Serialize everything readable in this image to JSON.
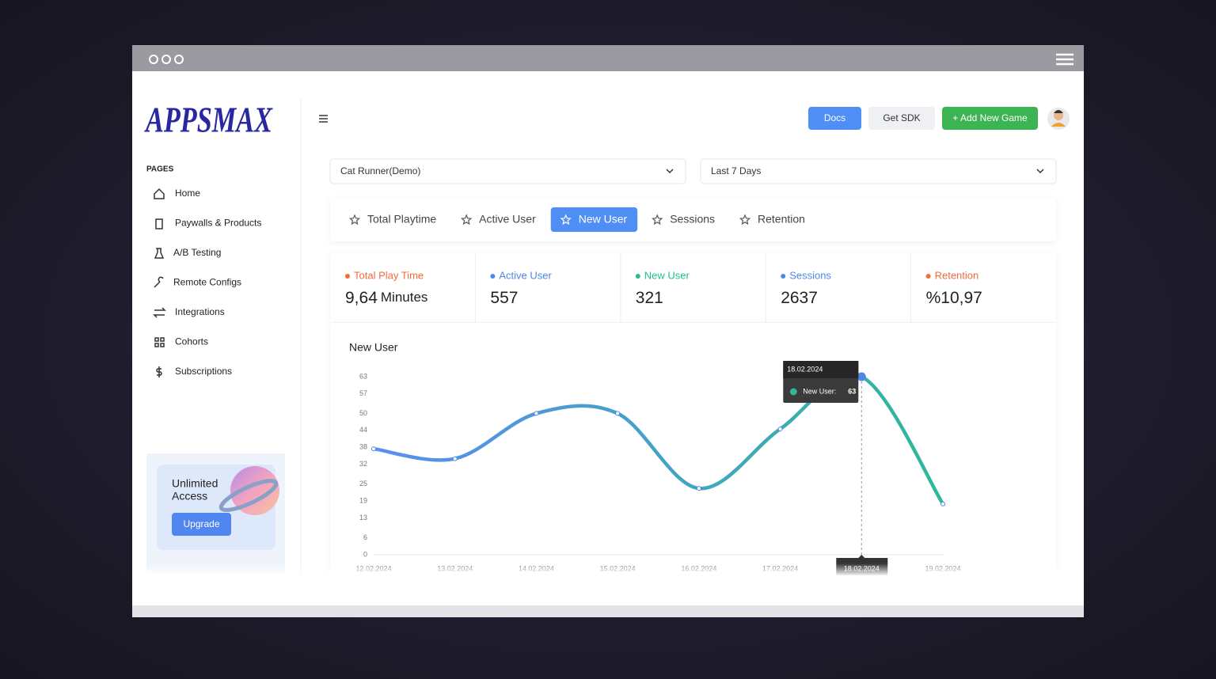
{
  "logo": "APPSMAX",
  "sidebar": {
    "section": "PAGES",
    "items": [
      "Home",
      "Paywalls & Products",
      "A/B Testing",
      "Remote Configs",
      "Integrations",
      "Cohorts",
      "Subscriptions"
    ],
    "promo": {
      "title": [
        "Unlimited",
        "Access"
      ],
      "button": "Upgrade"
    }
  },
  "header": {
    "buttons": [
      "Docs",
      "Get SDK",
      "+ Add New Game"
    ]
  },
  "filters": [
    "Cat Runner(Demo)",
    "Last 7 Days"
  ],
  "tabs": {
    "items": [
      "Total Playtime",
      "Active User",
      "New User",
      "Sessions",
      "Retention"
    ],
    "active": "New User"
  },
  "stats": [
    {
      "label": "Total Play Time",
      "value": "9,64",
      "unit": "Minutes",
      "color": "#f26b3a"
    },
    {
      "label": "Active User",
      "value": 557,
      "color": "#4f86e8"
    },
    {
      "label": "New User",
      "value": 321,
      "color": "#21c08b"
    },
    {
      "label": "Sessions",
      "value": 2637,
      "color": "#4f86e8"
    },
    {
      "label": "Retention",
      "value": "%10,97",
      "color": "#f26b3a"
    }
  ],
  "chart_data": {
    "type": "line",
    "title": "New User",
    "categories": [
      "12.02.2024",
      "13.02.2024",
      "14.02.2024",
      "15.02.2024",
      "16.02.2024",
      "17.02.2024",
      "18.02.2024",
      "19.02.2024"
    ],
    "series": [
      {
        "name": "New User",
        "color": "#33b39a",
        "gradient": [
          "#5a8ef0",
          "#2fb89a"
        ],
        "values": [
          37.5,
          34,
          50,
          50,
          23.5,
          44.5,
          63,
          18
        ]
      }
    ],
    "ylim": [
      0,
      63
    ],
    "yticks": [
      0,
      6,
      13,
      19,
      25,
      32,
      38,
      44,
      50,
      57,
      63
    ],
    "grid": false,
    "tooltip": {
      "date": "18.02.2024",
      "label": "New User:"
    }
  }
}
